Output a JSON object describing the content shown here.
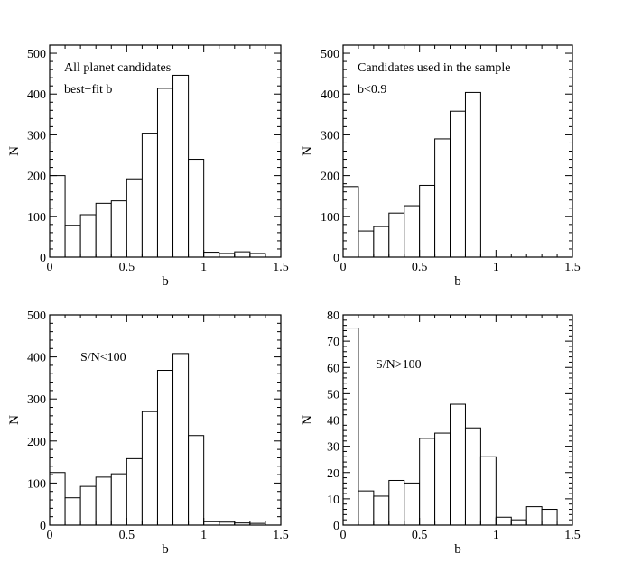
{
  "chart_data": [
    {
      "type": "bar",
      "title": "",
      "xlabel": "b",
      "ylabel": "N",
      "xlim": [
        0,
        1.5
      ],
      "ylim": [
        0,
        520
      ],
      "xticks": [
        0,
        0.5,
        1,
        1.5
      ],
      "xtick_labels": [
        "0",
        "0.5",
        "1",
        "1.5"
      ],
      "yticks": [
        0,
        100,
        200,
        300,
        400,
        500
      ],
      "ytick_labels": [
        "0",
        "100",
        "200",
        "300",
        "400",
        "500"
      ],
      "bin_edges": [
        0,
        0.1,
        0.2,
        0.3,
        0.4,
        0.5,
        0.6,
        0.7,
        0.8,
        0.9,
        1.0,
        1.1,
        1.2,
        1.3,
        1.4
      ],
      "values": [
        200,
        78,
        104,
        132,
        138,
        192,
        304,
        414,
        446,
        240,
        12,
        9,
        13,
        9
      ],
      "annotations": [
        "All planet candidates",
        "best−fit b"
      ]
    },
    {
      "type": "bar",
      "title": "",
      "xlabel": "b",
      "ylabel": "N",
      "xlim": [
        0,
        1.5
      ],
      "ylim": [
        0,
        520
      ],
      "xticks": [
        0,
        0.5,
        1,
        1.5
      ],
      "xtick_labels": [
        "0",
        "0.5",
        "1",
        "1.5"
      ],
      "yticks": [
        0,
        100,
        200,
        300,
        400,
        500
      ],
      "ytick_labels": [
        "0",
        "100",
        "200",
        "300",
        "400",
        "500"
      ],
      "bin_edges": [
        0,
        0.1,
        0.2,
        0.3,
        0.4,
        0.5,
        0.6,
        0.7,
        0.8,
        0.9
      ],
      "values": [
        173,
        64,
        75,
        108,
        126,
        176,
        290,
        358,
        404
      ],
      "annotations": [
        "Candidates used in the sample",
        "b<0.9"
      ]
    },
    {
      "type": "bar",
      "title": "",
      "xlabel": "b",
      "ylabel": "N",
      "xlim": [
        0,
        1.5
      ],
      "ylim": [
        0,
        500
      ],
      "xticks": [
        0,
        0.5,
        1,
        1.5
      ],
      "xtick_labels": [
        "0",
        "0.5",
        "1",
        "1.5"
      ],
      "yticks": [
        0,
        100,
        200,
        300,
        400,
        500
      ],
      "ytick_labels": [
        "0",
        "100",
        "200",
        "300",
        "400",
        "500"
      ],
      "bin_edges": [
        0,
        0.1,
        0.2,
        0.3,
        0.4,
        0.5,
        0.6,
        0.7,
        0.8,
        0.9,
        1.0,
        1.1,
        1.2,
        1.3,
        1.4
      ],
      "values": [
        125,
        65,
        92,
        114,
        122,
        158,
        270,
        368,
        408,
        213,
        8,
        7,
        5,
        4
      ],
      "annotations": [
        "S/N<100"
      ]
    },
    {
      "type": "bar",
      "title": "",
      "xlabel": "b",
      "ylabel": "N",
      "xlim": [
        0,
        1.5
      ],
      "ylim": [
        0,
        80
      ],
      "xticks": [
        0,
        0.5,
        1,
        1.5
      ],
      "xtick_labels": [
        "0",
        "0.5",
        "1",
        "1.5"
      ],
      "yticks": [
        0,
        10,
        20,
        30,
        40,
        50,
        60,
        70,
        80
      ],
      "ytick_labels": [
        "0",
        "10",
        "20",
        "30",
        "40",
        "50",
        "60",
        "70",
        "80"
      ],
      "bin_edges": [
        0,
        0.1,
        0.2,
        0.3,
        0.4,
        0.5,
        0.6,
        0.7,
        0.8,
        0.9,
        1.0,
        1.1,
        1.2,
        1.3,
        1.4
      ],
      "values": [
        75,
        13,
        11,
        17,
        16,
        33,
        35,
        46,
        37,
        26,
        3,
        2,
        7,
        6
      ],
      "annotations": [
        "S/N>100"
      ]
    }
  ]
}
